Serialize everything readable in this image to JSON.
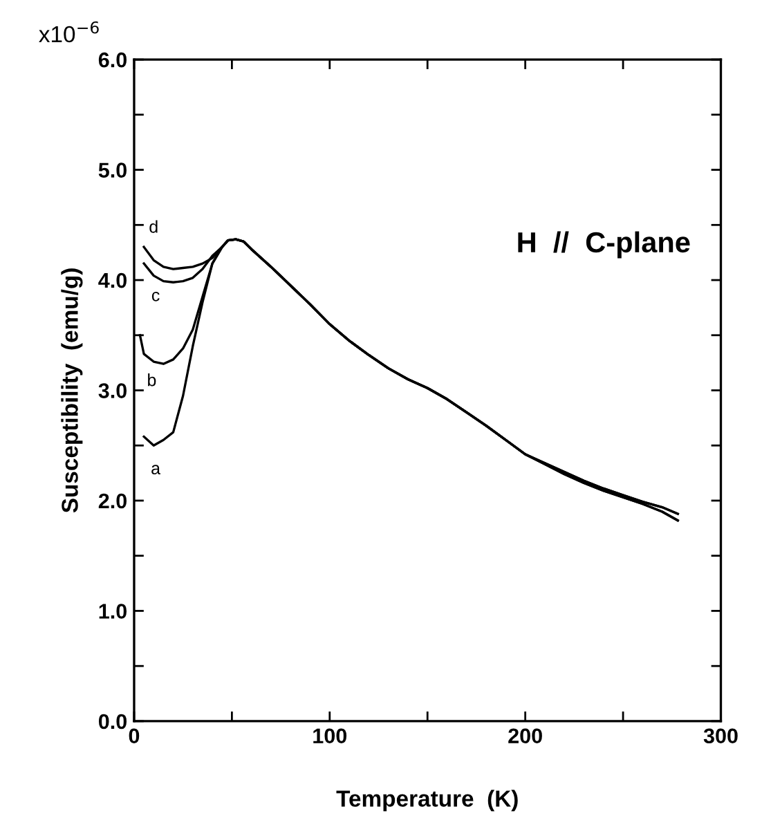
{
  "chart_data": {
    "type": "line",
    "xlabel": "Temperature  (K)",
    "ylabel": "Susceptibility  (emu/g)",
    "annotations": [
      "x10$^{−6}$",
      "H  //  C-plane"
    ],
    "xlim": [
      0,
      300
    ],
    "ylim": [
      0,
      6
    ],
    "xticks": [
      0,
      {
        "value": 50,
        "label": null
      },
      100,
      {
        "value": 150,
        "label": null
      },
      200,
      {
        "value": 250,
        "label": null
      },
      300
    ],
    "yticks": [
      {
        "value": 0,
        "label": "0.0"
      },
      {
        "value": 0.5,
        "label": null
      },
      {
        "value": 1,
        "label": "1.0"
      },
      {
        "value": 1.5,
        "label": null
      },
      {
        "value": 2,
        "label": "2.0"
      },
      {
        "value": 2.5,
        "label": null
      },
      {
        "value": 3,
        "label": "3.0"
      },
      {
        "value": 3.5,
        "label": null
      },
      {
        "value": 4,
        "label": "4.0"
      },
      {
        "value": 4.5,
        "label": null
      },
      {
        "value": 5,
        "label": "5.0"
      },
      {
        "value": 5.5,
        "label": null
      },
      {
        "value": 6,
        "label": "6.0"
      }
    ],
    "grid": false,
    "legend": false,
    "marker": "none",
    "line_style": "solid",
    "series": [
      {
        "name": "a",
        "color": "#000000",
        "x": [
          5,
          10,
          15,
          20,
          25,
          30,
          35,
          40,
          45,
          48,
          52,
          56,
          60,
          70,
          80,
          90,
          100,
          110,
          120,
          130,
          140,
          150,
          160,
          170,
          180,
          190,
          200,
          210,
          220,
          230,
          240,
          250,
          260,
          270,
          278
        ],
        "values": [
          2.58,
          2.5,
          2.55,
          2.62,
          2.95,
          3.4,
          3.8,
          4.15,
          4.3,
          4.36,
          4.37,
          4.35,
          4.28,
          4.12,
          3.95,
          3.78,
          3.6,
          3.45,
          3.32,
          3.2,
          3.1,
          3.02,
          2.92,
          2.8,
          2.68,
          2.55,
          2.42,
          2.33,
          2.24,
          2.16,
          2.09,
          2.03,
          1.97,
          1.9,
          1.82
        ]
      },
      {
        "name": "b",
        "color": "#000000",
        "x": [
          3,
          5,
          10,
          15,
          20,
          25,
          30,
          35,
          40,
          45,
          48,
          52,
          56,
          60,
          70,
          80,
          90,
          100,
          110,
          120,
          130,
          140,
          150,
          160,
          170,
          180,
          190,
          200,
          210,
          220,
          230,
          240,
          250,
          260,
          270,
          278
        ],
        "values": [
          3.5,
          3.33,
          3.26,
          3.24,
          3.28,
          3.38,
          3.55,
          3.85,
          4.15,
          4.3,
          4.36,
          4.37,
          4.35,
          4.28,
          4.12,
          3.95,
          3.78,
          3.6,
          3.45,
          3.32,
          3.2,
          3.1,
          3.02,
          2.92,
          2.8,
          2.68,
          2.55,
          2.42,
          2.33,
          2.24,
          2.16,
          2.09,
          2.03,
          1.97,
          1.9,
          1.82
        ]
      },
      {
        "name": "c",
        "color": "#000000",
        "x": [
          5,
          10,
          15,
          20,
          25,
          30,
          35,
          40,
          45,
          48,
          52,
          56,
          60,
          70,
          80,
          90,
          100,
          110,
          120,
          130,
          140,
          150,
          160,
          170,
          180,
          190,
          200,
          210,
          220,
          230,
          240,
          250,
          260,
          270,
          278
        ],
        "values": [
          4.15,
          4.04,
          3.99,
          3.98,
          3.99,
          4.02,
          4.1,
          4.22,
          4.3,
          4.36,
          4.37,
          4.35,
          4.28,
          4.12,
          3.95,
          3.78,
          3.6,
          3.45,
          3.32,
          3.2,
          3.1,
          3.02,
          2.92,
          2.8,
          2.68,
          2.55,
          2.42,
          2.34,
          2.26,
          2.18,
          2.11,
          2.05,
          1.99,
          1.94,
          1.88
        ]
      },
      {
        "name": "d",
        "color": "#000000",
        "x": [
          5,
          10,
          15,
          20,
          25,
          30,
          35,
          40,
          45,
          48,
          52,
          56,
          60,
          70,
          80,
          90,
          100,
          110,
          120,
          130,
          140,
          150,
          160,
          170,
          180,
          190,
          200,
          210,
          220,
          230,
          240,
          250,
          260,
          270,
          278
        ],
        "values": [
          4.3,
          4.18,
          4.12,
          4.1,
          4.11,
          4.12,
          4.15,
          4.2,
          4.3,
          4.36,
          4.37,
          4.35,
          4.28,
          4.12,
          3.95,
          3.78,
          3.6,
          3.45,
          3.32,
          3.2,
          3.1,
          3.02,
          2.92,
          2.8,
          2.68,
          2.55,
          2.42,
          2.34,
          2.26,
          2.18,
          2.11,
          2.05,
          1.99,
          1.94,
          1.88
        ]
      }
    ]
  }
}
